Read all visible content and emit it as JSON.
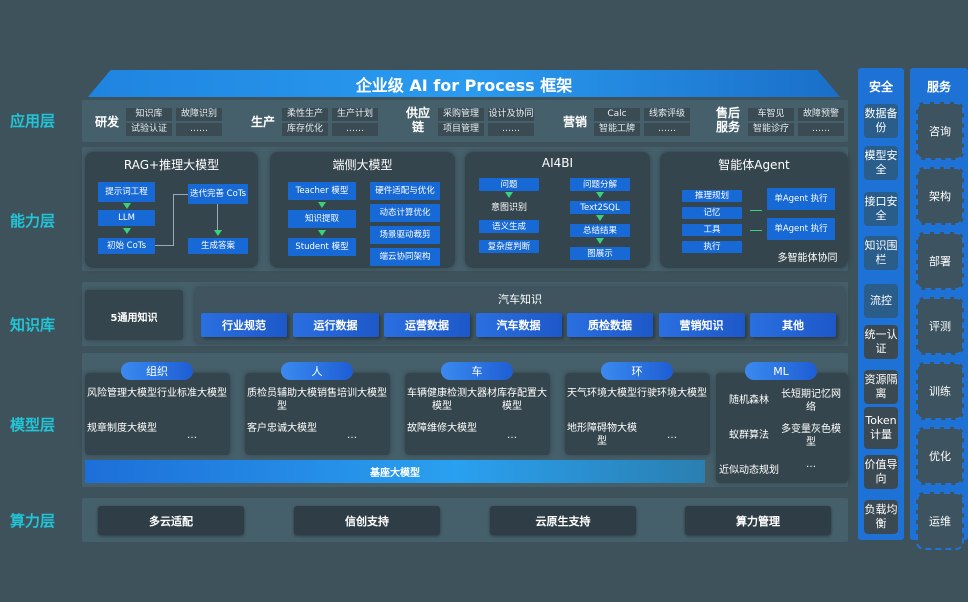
{
  "title": "企业级 AI for Process 框架",
  "layers": [
    "应用层",
    "能力层",
    "知识库",
    "模型层",
    "算力层"
  ],
  "apps": [
    {
      "name": "研发",
      "items": [
        "知识库",
        "试验认证",
        "故障识别",
        "……"
      ]
    },
    {
      "name": "生产",
      "items": [
        "柔性生产",
        "库存优化",
        "生产计划",
        "……"
      ]
    },
    {
      "name": "供应链",
      "items": [
        "采购管理",
        "项目管理",
        "设计及协同",
        "……"
      ]
    },
    {
      "name": "营销",
      "items": [
        "Calc",
        "智能工牌",
        "线索评级",
        "……"
      ]
    },
    {
      "name": "售后服务",
      "items": [
        "车智见",
        "智能诊疗",
        "故障预警",
        "……"
      ]
    }
  ],
  "capabilities": {
    "rag": {
      "title": "RAG+推理大模型",
      "left": [
        "提示词工程",
        "LLM",
        "初始 CoTs"
      ],
      "right": [
        "迭代完善 CoTs",
        "生成答案"
      ]
    },
    "edge": {
      "title": "端侧大模型",
      "left": [
        "Teacher 模型",
        "知识提取",
        "Student 模型"
      ],
      "right": [
        "硬件适配与优化",
        "动态计算优化",
        "场景驱动裁剪",
        "端云协同架构"
      ]
    },
    "ai4bi": {
      "title": "AI4BI",
      "left": [
        "问题",
        "意图识别",
        "语义生成",
        "复杂度判断"
      ],
      "right": [
        "问题分解",
        "Text2SQL",
        "总结结果",
        "图展示"
      ]
    },
    "agent": {
      "title": "智能体Agent",
      "left": [
        "推理规划",
        "记忆",
        "工具",
        "执行"
      ],
      "right": [
        "单Agent 执行",
        "单Agent 执行"
      ],
      "footer": "多智能体协同"
    }
  },
  "knowledge": {
    "general": "5通用知识",
    "auto_title": "汽车知识",
    "items": [
      "行业规范",
      "运行数据",
      "运营数据",
      "汽车数据",
      "质检数据",
      "营销知识",
      "其他"
    ]
  },
  "models": {
    "groups": [
      {
        "name": "组织",
        "items": [
          "风险管理大模型",
          "行业标准大模型",
          "规章制度大模型",
          "…"
        ]
      },
      {
        "name": "人",
        "items": [
          "质检员辅助大模型",
          "销售培训大模型",
          "客户忠诚大模型",
          "…"
        ]
      },
      {
        "name": "车",
        "items": [
          "车辆健康检测大模型",
          "器材库存配置大模型",
          "故障维修大模型",
          "…"
        ]
      },
      {
        "name": "环",
        "items": [
          "天气环境大模型",
          "行驶环境大模型",
          "地形障碍物大模型",
          "…"
        ]
      }
    ],
    "ml": {
      "name": "ML",
      "items": [
        "随机森林",
        "长短期记忆网络",
        "蚁群算法",
        "多变量灰色模型",
        "近似动态规划",
        "…"
      ]
    },
    "base": "基座大模型"
  },
  "compute": [
    "多云适配",
    "信创支持",
    "云原生支持",
    "算力管理"
  ],
  "security": {
    "title": "安全",
    "items": [
      "数据备份",
      "模型安全",
      "接口安全",
      "知识围栏",
      "流控",
      "统一认证",
      "资源隔离",
      "Token计量",
      "价值导向",
      "负载均衡"
    ]
  },
  "services": {
    "title": "服务",
    "items": [
      "咨询",
      "架构",
      "部署",
      "评测",
      "训练",
      "优化",
      "运维"
    ]
  },
  "colors": {
    "background": "#3e525c",
    "accent": "#1769d6",
    "layer_label": "#22c4d6",
    "arrow": "#3ad07c"
  }
}
